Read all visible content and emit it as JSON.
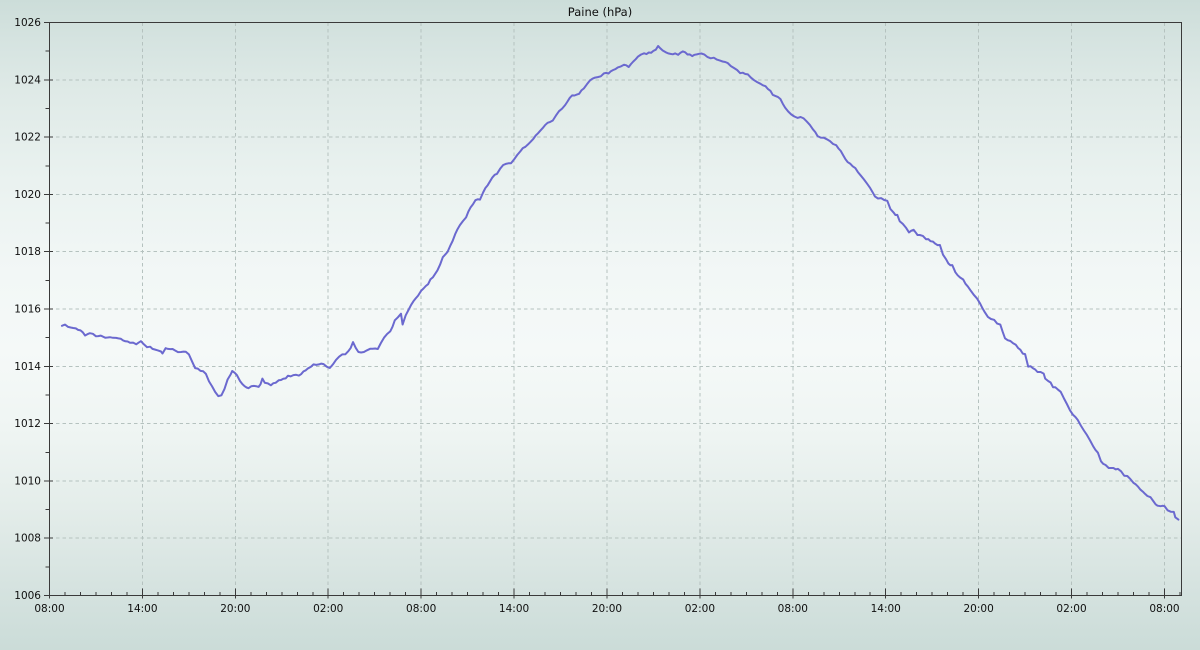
{
  "chart_data": {
    "type": "line",
    "title": "Paine (hPa)",
    "xlabel": "",
    "ylabel": "",
    "legend": "none",
    "grid": "dashed",
    "x_axis": {
      "range_hours": [
        0,
        73.1
      ],
      "major_interval_hours": 6,
      "minor_interval_hours": 1,
      "major_tick_labels": [
        "08:00",
        "14:00",
        "20:00",
        "02:00",
        "08:00",
        "14:00",
        "20:00",
        "02:00",
        "08:00",
        "14:00",
        "20:00",
        "02:00",
        "08:00"
      ]
    },
    "y_axis": {
      "range": [
        1006,
        1026
      ],
      "major_step": 2,
      "minor_step": 1,
      "tick_labels": [
        "1006",
        "1008",
        "1010",
        "1012",
        "1014",
        "1016",
        "1018",
        "1020",
        "1022",
        "1024",
        "1026"
      ]
    },
    "colors": {
      "line": "#6b69cf",
      "grid": "#b5c2bf",
      "axis": "#3a3a3a",
      "text": "#101010"
    },
    "series": [
      {
        "name": "Paine",
        "unit": "hPa",
        "points": [
          [
            0.8,
            1015.45
          ],
          [
            1.2,
            1015.4
          ],
          [
            1.7,
            1015.3
          ],
          [
            2.0,
            1015.25
          ],
          [
            2.3,
            1015.1
          ],
          [
            2.6,
            1015.15
          ],
          [
            3.0,
            1015.05
          ],
          [
            3.3,
            1015.1
          ],
          [
            3.6,
            1015.0
          ],
          [
            3.9,
            1015.05
          ],
          [
            4.3,
            1015.0
          ],
          [
            4.6,
            1014.95
          ],
          [
            4.9,
            1014.9
          ],
          [
            5.2,
            1014.85
          ],
          [
            5.6,
            1014.8
          ],
          [
            5.9,
            1014.85
          ],
          [
            6.3,
            1014.7
          ],
          [
            6.5,
            1014.65
          ],
          [
            6.8,
            1014.6
          ],
          [
            7.2,
            1014.55
          ],
          [
            7.3,
            1014.45
          ],
          [
            7.5,
            1014.6
          ],
          [
            7.8,
            1014.6
          ],
          [
            8.1,
            1014.55
          ],
          [
            8.5,
            1014.5
          ],
          [
            8.8,
            1014.5
          ],
          [
            9.0,
            1014.4
          ],
          [
            9.2,
            1014.2
          ],
          [
            9.4,
            1013.95
          ],
          [
            9.75,
            1013.85
          ],
          [
            10.1,
            1013.75
          ],
          [
            10.3,
            1013.5
          ],
          [
            10.5,
            1013.3
          ],
          [
            10.7,
            1013.1
          ],
          [
            10.9,
            1012.95
          ],
          [
            11.1,
            1013.0
          ],
          [
            11.3,
            1013.2
          ],
          [
            11.5,
            1013.55
          ],
          [
            11.7,
            1013.75
          ],
          [
            11.8,
            1013.85
          ],
          [
            12.1,
            1013.7
          ],
          [
            12.3,
            1013.5
          ],
          [
            12.6,
            1013.3
          ],
          [
            12.85,
            1013.25
          ],
          [
            13.2,
            1013.3
          ],
          [
            13.5,
            1013.25
          ],
          [
            13.75,
            1013.55
          ],
          [
            13.9,
            1013.4
          ],
          [
            14.3,
            1013.35
          ],
          [
            14.6,
            1013.4
          ],
          [
            14.8,
            1013.5
          ],
          [
            15.1,
            1013.55
          ],
          [
            15.4,
            1013.65
          ],
          [
            15.75,
            1013.7
          ],
          [
            16.1,
            1013.65
          ],
          [
            16.4,
            1013.8
          ],
          [
            16.7,
            1013.95
          ],
          [
            17.05,
            1014.05
          ],
          [
            17.4,
            1014.1
          ],
          [
            17.7,
            1014.05
          ],
          [
            18.1,
            1013.95
          ],
          [
            18.5,
            1014.2
          ],
          [
            18.9,
            1014.4
          ],
          [
            19.3,
            1014.5
          ],
          [
            19.6,
            1014.85
          ],
          [
            19.95,
            1014.5
          ],
          [
            20.3,
            1014.5
          ],
          [
            20.7,
            1014.6
          ],
          [
            21.2,
            1014.6
          ],
          [
            21.6,
            1015.0
          ],
          [
            22.0,
            1015.2
          ],
          [
            22.3,
            1015.6
          ],
          [
            22.7,
            1015.85
          ],
          [
            22.8,
            1015.45
          ],
          [
            23.0,
            1015.8
          ],
          [
            23.2,
            1016.0
          ],
          [
            23.5,
            1016.3
          ],
          [
            23.8,
            1016.5
          ],
          [
            24.0,
            1016.65
          ],
          [
            24.3,
            1016.8
          ],
          [
            24.6,
            1017.0
          ],
          [
            25.05,
            1017.35
          ],
          [
            25.4,
            1017.8
          ],
          [
            25.7,
            1018.0
          ],
          [
            26.2,
            1018.6
          ],
          [
            26.5,
            1018.9
          ],
          [
            26.9,
            1019.2
          ],
          [
            27.2,
            1019.55
          ],
          [
            27.5,
            1019.8
          ],
          [
            27.8,
            1019.85
          ],
          [
            28.0,
            1020.05
          ],
          [
            28.3,
            1020.35
          ],
          [
            28.6,
            1020.6
          ],
          [
            28.9,
            1020.75
          ],
          [
            29.3,
            1021.0
          ],
          [
            29.8,
            1021.1
          ],
          [
            30.0,
            1021.25
          ],
          [
            30.4,
            1021.5
          ],
          [
            30.9,
            1021.75
          ],
          [
            31.25,
            1021.95
          ],
          [
            31.7,
            1022.2
          ],
          [
            32.0,
            1022.4
          ],
          [
            32.5,
            1022.6
          ],
          [
            32.9,
            1022.9
          ],
          [
            33.3,
            1023.1
          ],
          [
            33.6,
            1023.4
          ],
          [
            34.2,
            1023.5
          ],
          [
            34.5,
            1023.7
          ],
          [
            34.9,
            1024.0
          ],
          [
            35.4,
            1024.1
          ],
          [
            35.8,
            1024.2
          ],
          [
            36.1,
            1024.25
          ],
          [
            36.4,
            1024.35
          ],
          [
            36.7,
            1024.4
          ],
          [
            37.1,
            1024.55
          ],
          [
            37.4,
            1024.45
          ],
          [
            37.7,
            1024.65
          ],
          [
            38.0,
            1024.8
          ],
          [
            38.4,
            1024.9
          ],
          [
            38.7,
            1024.95
          ],
          [
            39.0,
            1025.0
          ],
          [
            39.3,
            1025.15
          ],
          [
            39.6,
            1025.05
          ],
          [
            39.8,
            1024.95
          ],
          [
            40.1,
            1024.9
          ],
          [
            40.4,
            1024.95
          ],
          [
            40.6,
            1024.9
          ],
          [
            40.9,
            1025.0
          ],
          [
            41.2,
            1024.9
          ],
          [
            41.5,
            1024.85
          ],
          [
            41.8,
            1024.9
          ],
          [
            42.1,
            1024.9
          ],
          [
            42.5,
            1024.8
          ],
          [
            42.9,
            1024.75
          ],
          [
            43.3,
            1024.65
          ],
          [
            43.8,
            1024.6
          ],
          [
            44.2,
            1024.4
          ],
          [
            44.6,
            1024.25
          ],
          [
            45.1,
            1024.2
          ],
          [
            45.5,
            1024.0
          ],
          [
            45.9,
            1023.85
          ],
          [
            46.4,
            1023.7
          ],
          [
            46.7,
            1023.5
          ],
          [
            47.2,
            1023.35
          ],
          [
            47.5,
            1023.05
          ],
          [
            47.7,
            1022.9
          ],
          [
            48.1,
            1022.7
          ],
          [
            48.5,
            1022.7
          ],
          [
            48.9,
            1022.55
          ],
          [
            49.3,
            1022.3
          ],
          [
            49.6,
            1022.05
          ],
          [
            50.0,
            1021.95
          ],
          [
            50.4,
            1021.85
          ],
          [
            50.8,
            1021.7
          ],
          [
            51.1,
            1021.5
          ],
          [
            51.4,
            1021.2
          ],
          [
            51.7,
            1021.1
          ],
          [
            52.2,
            1020.8
          ],
          [
            52.6,
            1020.5
          ],
          [
            53.0,
            1020.2
          ],
          [
            53.3,
            1019.9
          ],
          [
            53.7,
            1019.85
          ],
          [
            54.1,
            1019.8
          ],
          [
            54.3,
            1019.5
          ],
          [
            54.5,
            1019.35
          ],
          [
            54.75,
            1019.25
          ],
          [
            54.9,
            1019.1
          ],
          [
            55.3,
            1018.85
          ],
          [
            55.5,
            1018.7
          ],
          [
            55.8,
            1018.75
          ],
          [
            56.05,
            1018.6
          ],
          [
            56.2,
            1018.6
          ],
          [
            56.6,
            1018.45
          ],
          [
            56.9,
            1018.4
          ],
          [
            57.2,
            1018.25
          ],
          [
            57.5,
            1018.2
          ],
          [
            57.7,
            1017.9
          ],
          [
            57.9,
            1017.75
          ],
          [
            58.05,
            1017.6
          ],
          [
            58.3,
            1017.5
          ],
          [
            58.5,
            1017.3
          ],
          [
            58.8,
            1017.1
          ],
          [
            59.0,
            1017.0
          ],
          [
            59.3,
            1016.8
          ],
          [
            59.5,
            1016.6
          ],
          [
            59.7,
            1016.5
          ],
          [
            59.9,
            1016.35
          ],
          [
            60.1,
            1016.2
          ],
          [
            60.4,
            1015.9
          ],
          [
            60.6,
            1015.75
          ],
          [
            61.0,
            1015.6
          ],
          [
            61.4,
            1015.45
          ],
          [
            61.7,
            1015.0
          ],
          [
            62.05,
            1014.85
          ],
          [
            62.4,
            1014.75
          ],
          [
            62.7,
            1014.55
          ],
          [
            63.0,
            1014.4
          ],
          [
            63.2,
            1014.0
          ],
          [
            63.5,
            1013.95
          ],
          [
            63.8,
            1013.8
          ],
          [
            64.2,
            1013.75
          ],
          [
            64.3,
            1013.6
          ],
          [
            64.5,
            1013.5
          ],
          [
            64.8,
            1013.3
          ],
          [
            65.1,
            1013.2
          ],
          [
            65.3,
            1013.1
          ],
          [
            65.5,
            1012.9
          ],
          [
            65.7,
            1012.7
          ],
          [
            65.9,
            1012.45
          ],
          [
            66.1,
            1012.3
          ],
          [
            66.4,
            1012.1
          ],
          [
            66.6,
            1011.9
          ],
          [
            66.8,
            1011.75
          ],
          [
            67.0,
            1011.6
          ],
          [
            67.2,
            1011.4
          ],
          [
            67.4,
            1011.2
          ],
          [
            67.7,
            1011.0
          ],
          [
            67.9,
            1010.7
          ],
          [
            68.2,
            1010.55
          ],
          [
            68.4,
            1010.45
          ],
          [
            68.7,
            1010.45
          ],
          [
            69.0,
            1010.4
          ],
          [
            69.2,
            1010.3
          ],
          [
            69.4,
            1010.2
          ],
          [
            69.6,
            1010.15
          ],
          [
            69.8,
            1010.05
          ],
          [
            70.0,
            1009.9
          ],
          [
            70.3,
            1009.8
          ],
          [
            70.6,
            1009.65
          ],
          [
            70.9,
            1009.5
          ],
          [
            71.1,
            1009.4
          ],
          [
            71.3,
            1009.25
          ],
          [
            71.55,
            1009.15
          ],
          [
            71.75,
            1009.1
          ],
          [
            72.0,
            1009.15
          ],
          [
            72.2,
            1009.0
          ],
          [
            72.4,
            1008.95
          ],
          [
            72.6,
            1008.9
          ],
          [
            72.7,
            1008.75
          ],
          [
            72.9,
            1008.65
          ]
        ]
      }
    ]
  }
}
